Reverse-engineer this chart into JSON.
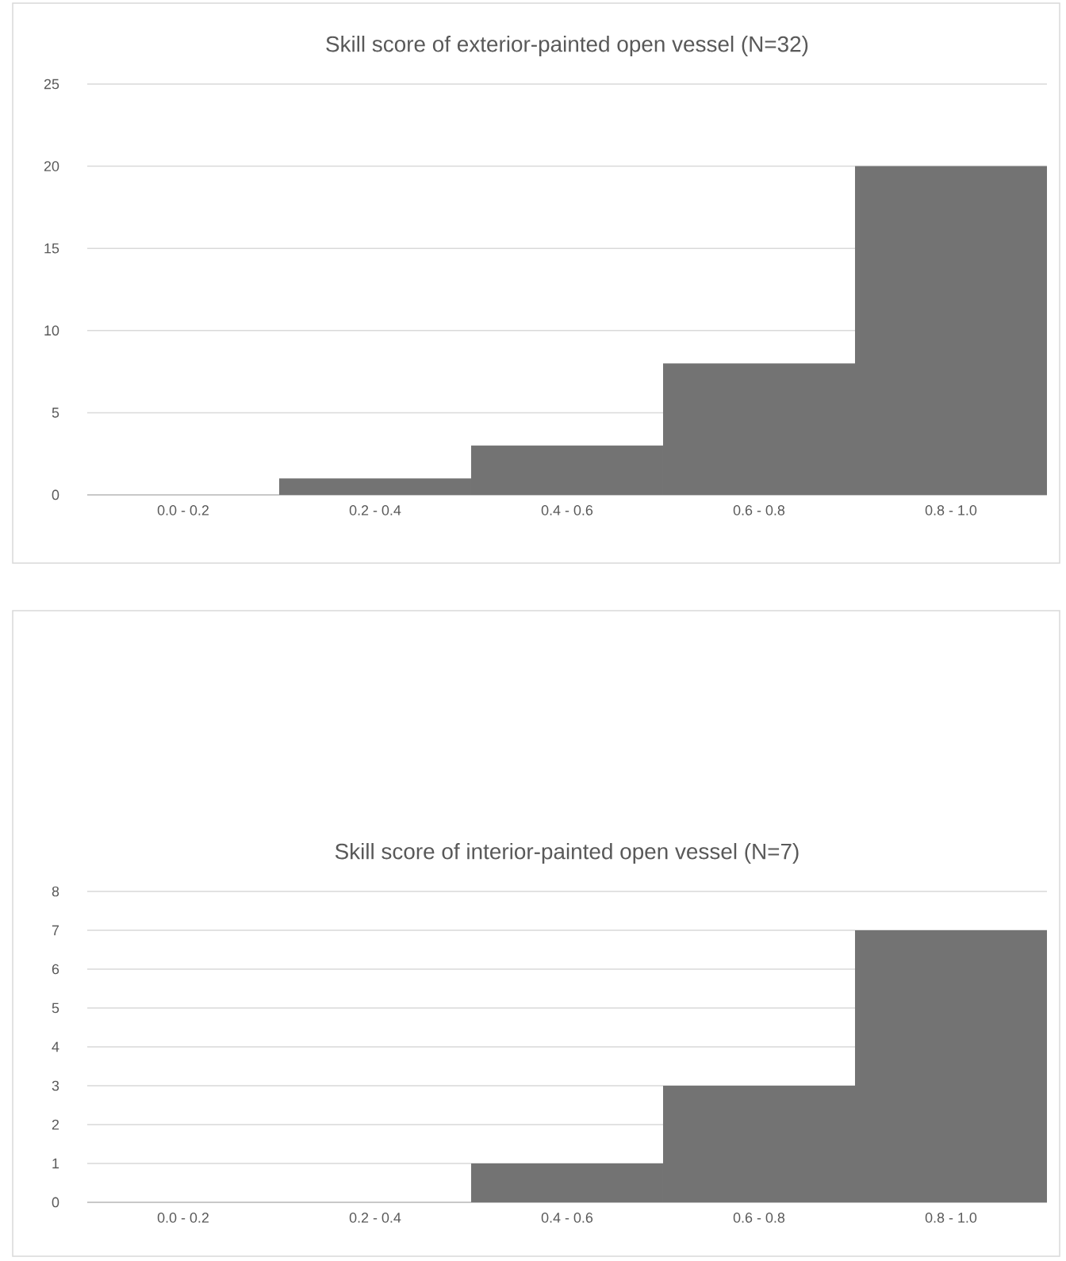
{
  "chart_data": [
    {
      "type": "bar",
      "title": "Skill score of exterior-painted open vessel (N=32)",
      "categories": [
        "0.0 - 0.2",
        "0.2 - 0.4",
        "0.4 - 0.6",
        "0.6 - 0.8",
        "0.8 - 1.0"
      ],
      "values": [
        0,
        1,
        3,
        8,
        20
      ],
      "color": "#737373",
      "ylim": [
        0,
        25
      ],
      "yticks": [
        0,
        5,
        10,
        15,
        20,
        25
      ],
      "grid": "y"
    },
    {
      "type": "bar",
      "title": "Skill score of interior-painted open vessel (N=7)",
      "categories": [
        "0.0 - 0.2",
        "0.2 - 0.4",
        "0.4 - 0.6",
        "0.6 - 0.8",
        "0.8 - 1.0"
      ],
      "values": [
        0,
        0,
        1,
        3,
        7
      ],
      "color": "#737373",
      "ylim": [
        0,
        8
      ],
      "yticks": [
        0,
        1,
        2,
        3,
        4,
        5,
        6,
        7,
        8
      ],
      "grid": "y"
    }
  ]
}
